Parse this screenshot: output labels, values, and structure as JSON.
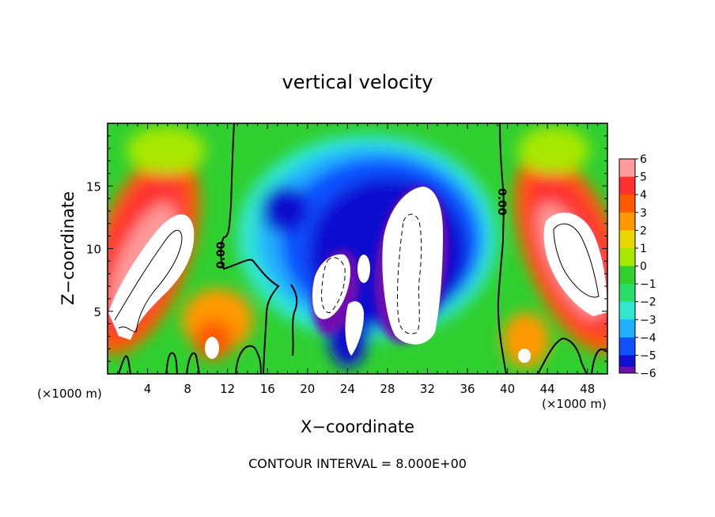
{
  "chart_data": {
    "type": "heatmap",
    "title": "vertical velocity",
    "xlabel": "X−coordinate",
    "ylabel": "Z−coordinate",
    "x_unit_label": "(×1000 m)",
    "y_unit_label": "(×1000 m)",
    "footer": "CONTOUR INTERVAL = 8.000E+00",
    "xlim": [
      0,
      50
    ],
    "ylim": [
      0,
      20
    ],
    "x_ticks": [
      4,
      8,
      12,
      16,
      20,
      24,
      28,
      32,
      36,
      40,
      44,
      48
    ],
    "x_tick_labels": [
      "4",
      "8",
      "12",
      "16",
      "20",
      "24",
      "28",
      "32",
      "36",
      "40",
      "44",
      "48"
    ],
    "y_ticks": [
      5,
      10,
      15
    ],
    "y_tick_labels": [
      "5",
      "10",
      "15"
    ],
    "colorbar": {
      "levels": [
        6,
        5,
        4,
        3,
        2,
        1,
        0,
        -1,
        -2,
        -3,
        -4,
        -5,
        -6
      ],
      "labels": [
        "6",
        "5",
        "4",
        "3",
        "2",
        "1",
        "0",
        "−1",
        "−2",
        "−3",
        "−4",
        "−5",
        "−6"
      ],
      "colors": [
        "#ff9a9a",
        "#ff3030",
        "#ff5a00",
        "#ff9800",
        "#e8d800",
        "#a8e800",
        "#30d030",
        "#28e068",
        "#30e8d0",
        "#20b0ff",
        "#1050ff",
        "#1010d0",
        "#7010b0"
      ]
    },
    "contour_labels": [
      {
        "text": "0.00",
        "x": 12.4,
        "y": 9.8
      },
      {
        "text": "0.00",
        "x": 39.3,
        "y": 13.6
      }
    ],
    "regions": [
      {
        "label": "updraft-left",
        "center": [
          5.5,
          8.5
        ],
        "value": 8
      },
      {
        "label": "updraft-right",
        "center": [
          46,
          9
        ],
        "value": 8
      },
      {
        "label": "downdraft-center",
        "center": [
          29.5,
          8.5
        ],
        "value": -8
      },
      {
        "label": "downdraft-left-center",
        "center": [
          22,
          7
        ],
        "value": -8
      }
    ]
  }
}
